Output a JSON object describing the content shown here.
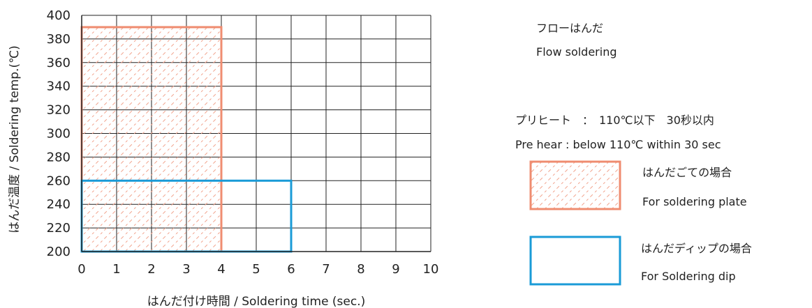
{
  "chart_data": {
    "type": "area",
    "xlabel": "はんだ付け時間 / Soldering time (sec.)",
    "ylabel": "はんだ温度 / Soldering temp.(℃)",
    "xlim": [
      0,
      10
    ],
    "ylim": [
      200,
      400
    ],
    "x_ticks": [
      0,
      1,
      2,
      3,
      4,
      5,
      6,
      7,
      8,
      9,
      10
    ],
    "y_ticks": [
      200,
      220,
      240,
      260,
      280,
      300,
      320,
      340,
      360,
      380,
      400
    ],
    "grid": true,
    "series": [
      {
        "name": "はんだごての場合 For soldering plate",
        "x_range": [
          0,
          4
        ],
        "y_range": [
          200,
          390
        ],
        "color": "#ef8c70",
        "fill": "hatched"
      },
      {
        "name": "はんだディップの場合 For Soldering dip",
        "x_range": [
          0,
          6
        ],
        "y_range": [
          200,
          260
        ],
        "color": "#1a9bd7",
        "fill": "none"
      }
    ],
    "legend_placement": "right",
    "legend": [
      {
        "label_ja": "はんだごての場合",
        "label_en": "For soldering plate"
      },
      {
        "label_ja": "はんだディップの場合",
        "label_en": "For Soldering dip"
      }
    ],
    "annotations": {
      "flow_ja": "フローはんだ",
      "flow_en": "Flow soldering",
      "preheat_ja": "プリヒート　：　110℃以下　30秒以内",
      "preheat_en": "Pre hear : below 110℃ within 30 sec"
    }
  }
}
